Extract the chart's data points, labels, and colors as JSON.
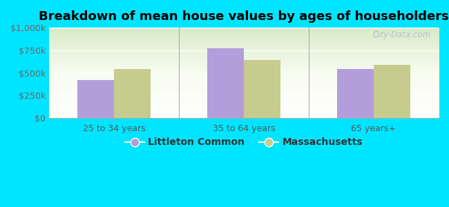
{
  "title": "Breakdown of mean house values by ages of householders",
  "categories": [
    "25 to 34 years",
    "35 to 64 years",
    "65 years+"
  ],
  "series": {
    "Littleton Common": [
      420000,
      775000,
      540000
    ],
    "Massachusetts": [
      545000,
      645000,
      590000
    ]
  },
  "bar_colors": {
    "Littleton Common": "#b39ddb",
    "Massachusetts": "#c5cc8e"
  },
  "ylim": [
    0,
    1000000
  ],
  "yticks": [
    0,
    250000,
    500000,
    750000,
    1000000
  ],
  "ytick_labels": [
    "$0",
    "$250k",
    "$500k",
    "$750k",
    "$1,000k"
  ],
  "background_color": "#00e5ff",
  "title_fontsize": 13,
  "legend_fontsize": 10,
  "tick_fontsize": 9,
  "bar_width": 0.28,
  "watermark": "City-Data.com"
}
